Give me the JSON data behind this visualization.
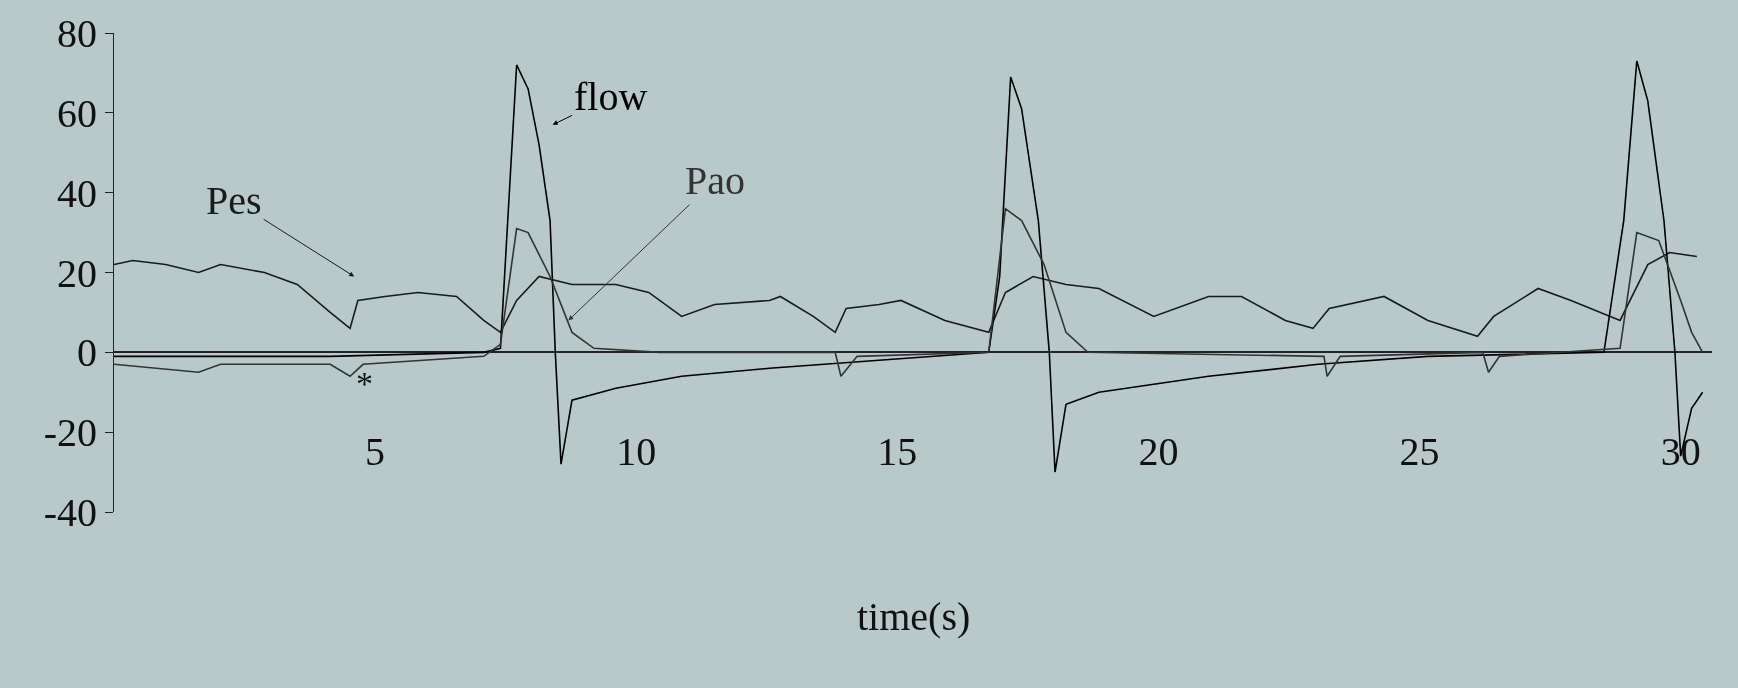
{
  "chart_data": {
    "type": "line",
    "xlabel": "time(s)",
    "xlim": [
      0,
      30.6
    ],
    "xticks": [
      5,
      10,
      15,
      20,
      25,
      30
    ],
    "ylim": [
      -40,
      80
    ],
    "yticks": [
      -40,
      -20,
      0,
      20,
      40,
      60,
      80
    ],
    "grid": false,
    "marker": "none",
    "line_style": "solid",
    "series": [
      {
        "name": "Pes",
        "color": "#1a1a1a",
        "x": [
          0,
          0.36,
          0.99,
          1.62,
          2.04,
          2.88,
          3.51,
          4.14,
          4.52,
          4.67,
          5.19,
          5.82,
          6.56,
          7.08,
          7.4,
          7.71,
          8.14,
          8.77,
          9.61,
          10.24,
          10.87,
          11.5,
          12.55,
          12.76,
          13.39,
          13.81,
          14.02,
          14.65,
          15.07,
          15.91,
          16.75,
          17.07,
          17.6,
          18.23,
          18.86,
          19.91,
          20.96,
          21.59,
          22.43,
          22.96,
          23.27,
          24.32,
          25.16,
          26.11,
          26.42,
          27.27,
          27.9,
          28.84,
          29.37,
          29.79,
          30.31
        ],
        "values": [
          22,
          23,
          22,
          20,
          22,
          20,
          17,
          10,
          6,
          13,
          14,
          15,
          14,
          8,
          5,
          13,
          19,
          17,
          17,
          15,
          9,
          12,
          13,
          14,
          9,
          5,
          11,
          12,
          13,
          8,
          5,
          15,
          19,
          17,
          16,
          9,
          14,
          14,
          8,
          6,
          11,
          14,
          8,
          4,
          9,
          16,
          13,
          8,
          22,
          25,
          24
        ]
      },
      {
        "name": "flow",
        "color": "#000000",
        "x": [
          0,
          4.14,
          7.08,
          7.4,
          7.71,
          7.93,
          8.14,
          8.35,
          8.45,
          8.56,
          8.77,
          9.61,
          10.87,
          12.55,
          14.65,
          16.75,
          16.96,
          17.17,
          17.38,
          17.7,
          17.91,
          18.02,
          18.23,
          18.86,
          20.96,
          23.06,
          25.16,
          28.53,
          28.91,
          29.16,
          29.37,
          29.68,
          29.89,
          30.0,
          30.21,
          30.42
        ],
        "values": [
          -1,
          -1,
          0,
          1,
          72,
          66,
          52,
          33,
          0,
          -28,
          -12,
          -9,
          -6,
          -4,
          -2,
          0,
          19,
          69,
          61,
          33,
          0,
          -30,
          -13,
          -10,
          -6,
          -3,
          -1,
          0,
          33,
          73,
          63,
          33,
          0,
          -26,
          -14,
          -10
        ]
      },
      {
        "name": "Pao",
        "color": "#333333",
        "x": [
          0,
          1.62,
          2.04,
          4.14,
          4.52,
          4.77,
          7.08,
          7.4,
          7.71,
          7.93,
          8.35,
          8.77,
          9.19,
          10.45,
          13.81,
          13.92,
          14.23,
          16.75,
          17.07,
          17.38,
          17.81,
          18.23,
          18.65,
          23.17,
          23.23,
          23.48,
          26.21,
          26.32,
          26.53,
          28.84,
          29.16,
          29.58,
          30.0,
          30.21,
          30.42
        ],
        "values": [
          -3,
          -5,
          -3,
          -3,
          -6,
          -3,
          -1,
          2,
          31,
          30,
          19,
          5,
          1,
          0,
          0,
          -6,
          -1,
          0,
          36,
          33,
          22,
          5,
          0,
          -1,
          -6,
          -1,
          0,
          -5,
          -1,
          1,
          30,
          28,
          13,
          5,
          0
        ]
      }
    ],
    "annotations": [
      "*"
    ]
  }
}
